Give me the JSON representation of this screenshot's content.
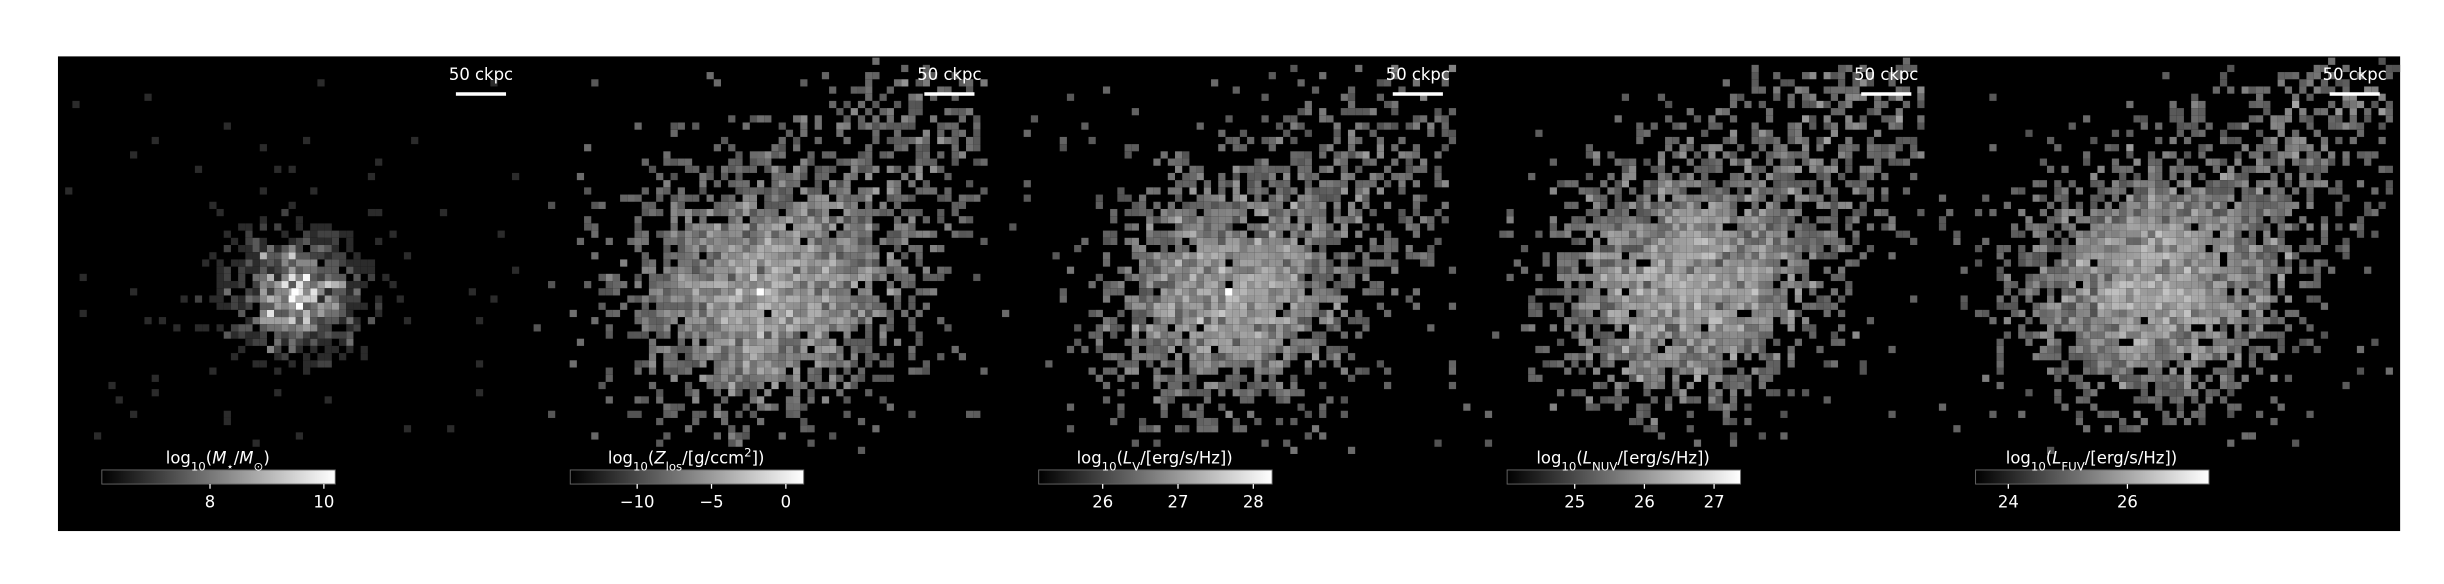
{
  "panels": [
    {
      "scale_label": "50 ckpc",
      "colorbar": {
        "label": [
          {
            "text": "log"
          },
          {
            "text": "10",
            "sub": true
          },
          {
            "text": "("
          },
          {
            "text": "M",
            "italic": true
          },
          {
            "text": "⋆",
            "sub": true
          },
          {
            "text": "/"
          },
          {
            "text": "M",
            "italic": true
          },
          {
            "text": "⊙",
            "sub": true
          },
          {
            "text": ")"
          }
        ],
        "lim": [
          6.1,
          10.2
        ],
        "ticks": [
          8,
          10
        ]
      }
    },
    {
      "scale_label": "50 ckpc",
      "colorbar": {
        "label": [
          {
            "text": "log"
          },
          {
            "text": "10",
            "sub": true
          },
          {
            "text": "("
          },
          {
            "text": "Z",
            "italic": true
          },
          {
            "text": "los",
            "sub": true
          },
          {
            "text": "/[g/ccm"
          },
          {
            "text": "2",
            "sup": true
          },
          {
            "text": "])"
          }
        ],
        "lim": [
          -14.5,
          1.2
        ],
        "ticks": [
          {
            "value": -10,
            "label": "−10"
          },
          {
            "value": -5,
            "label": "−5"
          },
          0
        ]
      }
    },
    {
      "scale_label": "50 ckpc",
      "colorbar": {
        "label": [
          {
            "text": "log"
          },
          {
            "text": "10",
            "sub": true
          },
          {
            "text": "("
          },
          {
            "text": "L",
            "italic": true
          },
          {
            "text": "V",
            "sub": true
          },
          {
            "text": "/[erg/s/Hz])"
          }
        ],
        "lim": [
          25.15,
          28.25
        ],
        "ticks": [
          26,
          27,
          28
        ]
      }
    },
    {
      "scale_label": "50 ckpc",
      "colorbar": {
        "label": [
          {
            "text": "log"
          },
          {
            "text": "10",
            "sub": true
          },
          {
            "text": "("
          },
          {
            "text": "L",
            "italic": true
          },
          {
            "text": "NUV",
            "sub": true
          },
          {
            "text": "/[erg/s/Hz])"
          }
        ],
        "lim": [
          24.03,
          27.38
        ],
        "ticks": [
          25,
          26,
          27
        ]
      }
    },
    {
      "scale_label": "50 ckpc",
      "colorbar": {
        "label": [
          {
            "text": "log"
          },
          {
            "text": "10",
            "sub": true
          },
          {
            "text": "("
          },
          {
            "text": "L",
            "italic": true
          },
          {
            "text": "FUV",
            "sub": true
          },
          {
            "text": "/[erg/s/Hz])"
          }
        ],
        "lim": [
          23.45,
          27.37
        ],
        "ticks": [
          24,
          26
        ]
      }
    }
  ]
}
